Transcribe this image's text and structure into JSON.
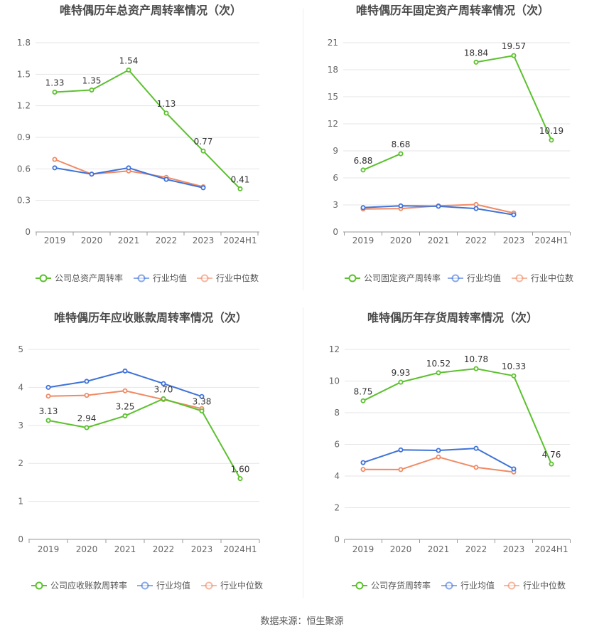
{
  "colors": {
    "company": "#5cc12e",
    "avg": "#3f73d8",
    "median": "#f08a64",
    "grid": "#e6e6e6",
    "axis": "#999999"
  },
  "source_text": "数据来源：恒生聚源",
  "chart_data": [
    {
      "type": "line",
      "title": "唯特偶历年总资产周转率情况（次）",
      "categories": [
        "2019",
        "2020",
        "2021",
        "2022",
        "2023",
        "2024H1"
      ],
      "ylim": [
        0,
        1.8
      ],
      "yticks": [
        "0",
        "0.3",
        "0.6",
        "0.9",
        "1.2",
        "1.5",
        "1.8"
      ],
      "series": [
        {
          "name": "公司总资产周转率",
          "values": [
            1.33,
            1.35,
            1.54,
            1.13,
            0.77,
            0.41
          ],
          "labels": [
            "1.33",
            "1.35",
            "1.54",
            "1.13",
            "0.77",
            "0.41"
          ]
        },
        {
          "name": "行业均值",
          "values": [
            0.61,
            0.55,
            0.61,
            0.5,
            0.42,
            null
          ]
        },
        {
          "name": "行业中位数",
          "values": [
            0.69,
            0.55,
            0.58,
            0.52,
            0.43,
            null
          ]
        }
      ]
    },
    {
      "type": "line",
      "title": "唯特偶历年固定资产周转率情况（次）",
      "categories": [
        "2019",
        "2020",
        "2021",
        "2022",
        "2023",
        "2024H1"
      ],
      "ylim": [
        0,
        21
      ],
      "yticks": [
        "0",
        "3",
        "6",
        "9",
        "12",
        "15",
        "18",
        "21"
      ],
      "series": [
        {
          "name": "公司固定资产周转率",
          "values": [
            6.88,
            8.68,
            null,
            18.84,
            19.57,
            10.19
          ],
          "labels": [
            "6.88",
            "8.68",
            "",
            "18.84",
            "19.57",
            "10.19"
          ]
        },
        {
          "name": "行业均值",
          "values": [
            2.7,
            2.9,
            2.85,
            2.6,
            1.9,
            null
          ]
        },
        {
          "name": "行业中位数",
          "values": [
            2.55,
            2.6,
            2.9,
            3.05,
            2.1,
            null
          ]
        }
      ]
    },
    {
      "type": "line",
      "title": "唯特偶历年应收账款周转率情况（次）",
      "categories": [
        "2019",
        "2020",
        "2021",
        "2022",
        "2023",
        "2024H1"
      ],
      "ylim": [
        0,
        5
      ],
      "yticks": [
        "0",
        "1",
        "2",
        "3",
        "4",
        "5"
      ],
      "series": [
        {
          "name": "公司应收账款周转率",
          "values": [
            3.13,
            2.94,
            3.25,
            3.7,
            3.38,
            1.6
          ],
          "labels": [
            "3.13",
            "2.94",
            "3.25",
            "3.70",
            "3.38",
            "1.60"
          ]
        },
        {
          "name": "行业均值",
          "values": [
            4.0,
            4.16,
            4.43,
            4.1,
            3.76,
            null
          ]
        },
        {
          "name": "行业中位数",
          "values": [
            3.77,
            3.79,
            3.91,
            3.68,
            3.44,
            null
          ]
        }
      ]
    },
    {
      "type": "line",
      "title": "唯特偶历年存货周转率情况（次）",
      "categories": [
        "2019",
        "2020",
        "2021",
        "2022",
        "2023",
        "2024H1"
      ],
      "ylim": [
        0,
        12
      ],
      "yticks": [
        "0",
        "2",
        "4",
        "6",
        "8",
        "10",
        "12"
      ],
      "series": [
        {
          "name": "公司存货周转率",
          "values": [
            8.75,
            9.93,
            10.52,
            10.78,
            10.33,
            4.76
          ],
          "labels": [
            "8.75",
            "9.93",
            "10.52",
            "10.78",
            "10.33",
            "4.76"
          ]
        },
        {
          "name": "行业均值",
          "values": [
            4.85,
            5.65,
            5.62,
            5.75,
            4.45,
            null
          ]
        },
        {
          "name": "行业中位数",
          "values": [
            4.42,
            4.41,
            5.2,
            4.55,
            4.25,
            null
          ]
        }
      ]
    }
  ]
}
